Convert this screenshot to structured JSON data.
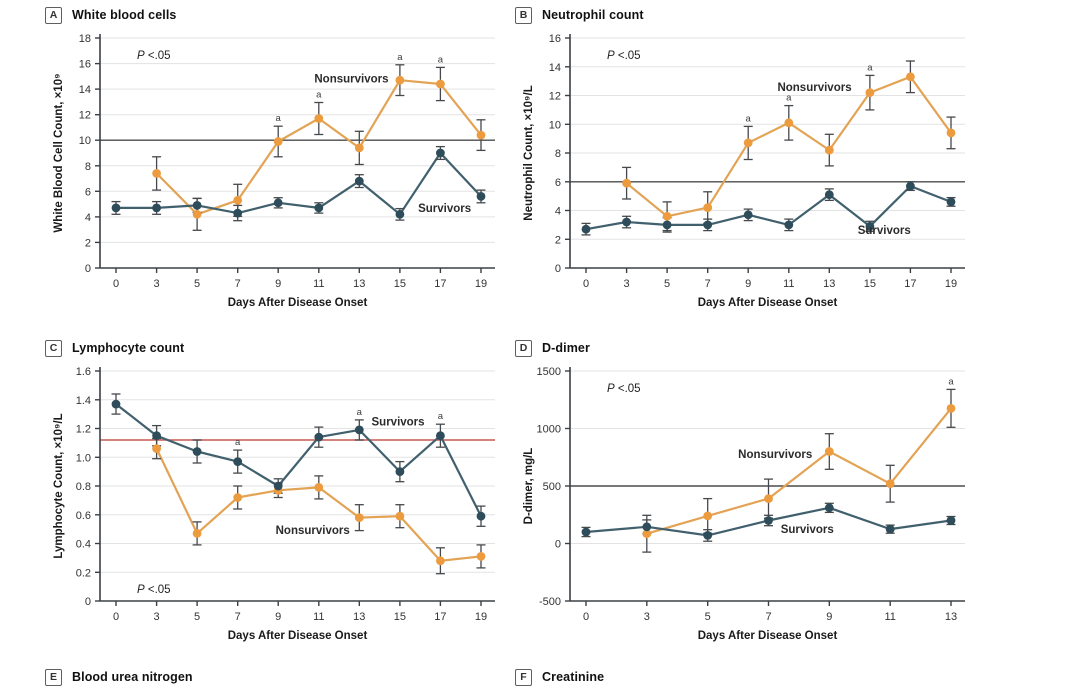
{
  "figure": {
    "colors": {
      "nonsurvivor_marker": "#ED9B3F",
      "nonsurvivor_line": "#E3A355",
      "survivor_marker": "#2E4C59",
      "survivor_line": "#41606D",
      "grid": "#e3e3e3",
      "axis": "#3b4045",
      "errbar": "#45494d",
      "tick_text": "#333333",
      "title_text": "#1a1a1a",
      "ref_dark": "#4c4c4c",
      "ref_red": "#C75B52"
    }
  },
  "chart_data": [
    {
      "type": "line",
      "letter": "A",
      "title": "White blood cells",
      "xlabel": "Days After Disease Onset",
      "ylabel": "White Blood Cell Count, ×10⁹",
      "ylim": [
        0,
        18
      ],
      "ystep": 2,
      "categories": [
        0,
        3,
        5,
        7,
        9,
        11,
        13,
        15,
        17,
        19
      ],
      "ref_line": {
        "value": 10,
        "color": "#4c4c4c"
      },
      "p_label_italic": "P",
      "p_label_rest": " <.05",
      "p_label_pos": "top-left",
      "sig_letter": "a",
      "sig_markers": [
        {
          "series": 0,
          "index": 4
        },
        {
          "series": 0,
          "index": 5
        },
        {
          "series": 0,
          "index": 7
        },
        {
          "series": 0,
          "index": 8
        }
      ],
      "series": [
        {
          "name": "Nonsurvivors",
          "color": "#E3A355",
          "marker": "#ED9B3F",
          "values": [
            null,
            7.4,
            4.2,
            5.3,
            9.9,
            11.7,
            9.4,
            14.7,
            14.4,
            10.4
          ],
          "errors": [
            null,
            1.3,
            1.25,
            1.25,
            1.2,
            1.25,
            1.3,
            1.2,
            1.3,
            1.2
          ],
          "label": {
            "text": "Nonsurvivors",
            "xi": 6.72,
            "y": 14.5,
            "anchor": "end"
          }
        },
        {
          "name": "Survivors",
          "color": "#41606D",
          "marker": "#2E4C59",
          "values": [
            4.7,
            4.7,
            4.9,
            4.3,
            5.1,
            4.7,
            6.8,
            4.2,
            9.0,
            5.6
          ],
          "errors": [
            0.5,
            0.5,
            0.55,
            0.6,
            0.4,
            0.4,
            0.5,
            0.45,
            0.5,
            0.5
          ],
          "label": {
            "text": "Survivors",
            "xi": 7.45,
            "y": 4.4,
            "anchor": "start"
          }
        }
      ]
    },
    {
      "type": "line",
      "letter": "B",
      "title": "Neutrophil count",
      "xlabel": "Days After Disease Onset",
      "ylabel": "Neutrophil Count, ×10⁹/L",
      "ylim": [
        0,
        16
      ],
      "ystep": 2,
      "categories": [
        0,
        3,
        5,
        7,
        9,
        11,
        13,
        15,
        17,
        19
      ],
      "ref_line": {
        "value": 6,
        "color": "#4c4c4c"
      },
      "p_label_italic": "P",
      "p_label_rest": " <.05",
      "p_label_pos": "top-left",
      "sig_letter": "a",
      "sig_markers": [
        {
          "series": 0,
          "index": 4
        },
        {
          "series": 0,
          "index": 5
        },
        {
          "series": 0,
          "index": 7
        }
      ],
      "series": [
        {
          "name": "Nonsurvivors",
          "color": "#E3A355",
          "marker": "#ED9B3F",
          "values": [
            null,
            5.9,
            3.6,
            4.2,
            8.7,
            10.1,
            8.2,
            12.2,
            13.3,
            9.4
          ],
          "errors": [
            null,
            1.1,
            1.0,
            1.1,
            1.15,
            1.2,
            1.1,
            1.2,
            1.1,
            1.1
          ],
          "label": {
            "text": "Nonsurvivors",
            "xi": 6.55,
            "y": 12.3,
            "anchor": "end"
          }
        },
        {
          "name": "Survivors",
          "color": "#41606D",
          "marker": "#2E4C59",
          "values": [
            2.7,
            3.2,
            3.0,
            3.0,
            3.7,
            3.0,
            5.1,
            2.9,
            5.7,
            4.6
          ],
          "errors": [
            0.4,
            0.4,
            0.5,
            0.4,
            0.4,
            0.4,
            0.4,
            0.35,
            0.3,
            0.3
          ],
          "label": {
            "text": "Survivors",
            "xi": 6.7,
            "y": 2.35,
            "anchor": "start"
          }
        }
      ]
    },
    {
      "type": "line",
      "letter": "C",
      "title": "Lymphocyte count",
      "xlabel": "Days After Disease Onset",
      "ylabel": "Lymphocyte Count, ×10⁹/L",
      "ylim": [
        0,
        1.6
      ],
      "ystep": 0.2,
      "categories": [
        0,
        3,
        5,
        7,
        9,
        11,
        13,
        15,
        17,
        19
      ],
      "ref_line": {
        "value": 1.12,
        "color": "#C75B52"
      },
      "p_label_italic": "P",
      "p_label_rest": " <.05",
      "p_label_pos": "bottom-left",
      "sig_letter": "a",
      "sig_markers": [
        {
          "series": 1,
          "index": 3
        },
        {
          "series": 1,
          "index": 6
        },
        {
          "series": 1,
          "index": 8
        }
      ],
      "series": [
        {
          "name": "Nonsurvivors",
          "color": "#E3A355",
          "marker": "#ED9B3F",
          "values": [
            null,
            1.06,
            0.47,
            0.72,
            0.77,
            0.79,
            0.58,
            0.59,
            0.28,
            0.31
          ],
          "errors": [
            null,
            0.07,
            0.08,
            0.08,
            0.05,
            0.08,
            0.09,
            0.08,
            0.09,
            0.08
          ],
          "label": {
            "text": "Nonsurvivors",
            "xi": 4.85,
            "y": 0.465,
            "anchor": "middle"
          }
        },
        {
          "name": "Survivors",
          "color": "#41606D",
          "marker": "#2E4C59",
          "values": [
            1.37,
            1.15,
            1.04,
            0.97,
            0.8,
            1.14,
            1.19,
            0.9,
            1.15,
            0.59
          ],
          "errors": [
            0.07,
            0.07,
            0.08,
            0.08,
            0.05,
            0.07,
            0.07,
            0.07,
            0.08,
            0.07
          ],
          "label": {
            "text": "Survivors",
            "xi": 6.3,
            "y": 1.22,
            "anchor": "start"
          }
        }
      ]
    },
    {
      "type": "line",
      "letter": "D",
      "title": "D-dimer",
      "xlabel": "Days After Disease Onset",
      "ylabel": "D-dimer, mg/L",
      "ylim": [
        -500,
        1500
      ],
      "ystep": 500,
      "categories": [
        0,
        3,
        5,
        7,
        9,
        11,
        13
      ],
      "ref_line": {
        "value": 500,
        "color": "#4c4c4c"
      },
      "p_label_italic": "P",
      "p_label_rest": " <.05",
      "p_label_pos": "top-left",
      "sig_letter": "a",
      "sig_markers": [
        {
          "series": 0,
          "index": 6
        }
      ],
      "series": [
        {
          "name": "Nonsurvivors",
          "color": "#E3A355",
          "marker": "#ED9B3F",
          "values": [
            null,
            85,
            240,
            390,
            800,
            520,
            1175
          ],
          "errors": [
            null,
            160,
            150,
            170,
            155,
            160,
            165
          ],
          "label": {
            "text": "Nonsurvivors",
            "xi": 3.72,
            "y": 745,
            "anchor": "end"
          }
        },
        {
          "name": "Survivors",
          "color": "#41606D",
          "marker": "#2E4C59",
          "values": [
            100,
            145,
            70,
            200,
            310,
            125,
            200
          ],
          "errors": [
            40,
            60,
            50,
            45,
            40,
            35,
            35
          ],
          "label": {
            "text": "Survivors",
            "xi": 3.2,
            "y": 90,
            "anchor": "start"
          }
        }
      ]
    }
  ],
  "footer_panels": [
    {
      "letter": "E",
      "title": "Blood urea nitrogen"
    },
    {
      "letter": "F",
      "title": "Creatinine"
    }
  ]
}
